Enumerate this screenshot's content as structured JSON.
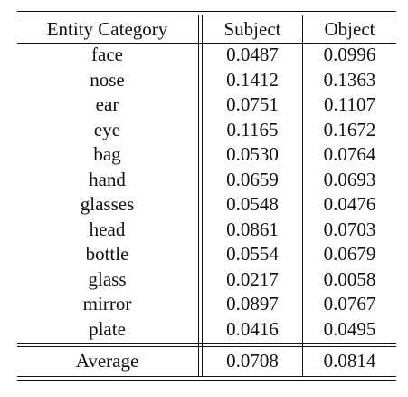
{
  "table": {
    "headers": {
      "category": "Entity Category",
      "subject": "Subject",
      "object": "Object"
    },
    "rows": [
      {
        "category": "face",
        "subject": "0.0487",
        "object": "0.0996"
      },
      {
        "category": "nose",
        "subject": "0.1412",
        "object": "0.1363"
      },
      {
        "category": "ear",
        "subject": "0.0751",
        "object": "0.1107"
      },
      {
        "category": "eye",
        "subject": "0.1165",
        "object": "0.1672"
      },
      {
        "category": "bag",
        "subject": "0.0530",
        "object": "0.0764"
      },
      {
        "category": "hand",
        "subject": "0.0659",
        "object": "0.0693"
      },
      {
        "category": "glasses",
        "subject": "0.0548",
        "object": "0.0476"
      },
      {
        "category": "head",
        "subject": "0.0861",
        "object": "0.0703"
      },
      {
        "category": "bottle",
        "subject": "0.0554",
        "object": "0.0679"
      },
      {
        "category": "glass",
        "subject": "0.0217",
        "object": "0.0058"
      },
      {
        "category": "mirror",
        "subject": "0.0897",
        "object": "0.0767"
      },
      {
        "category": "plate",
        "subject": "0.0416",
        "object": "0.0495"
      }
    ],
    "average": {
      "category": "Average",
      "subject": "0.0708",
      "object": "0.0814"
    }
  }
}
